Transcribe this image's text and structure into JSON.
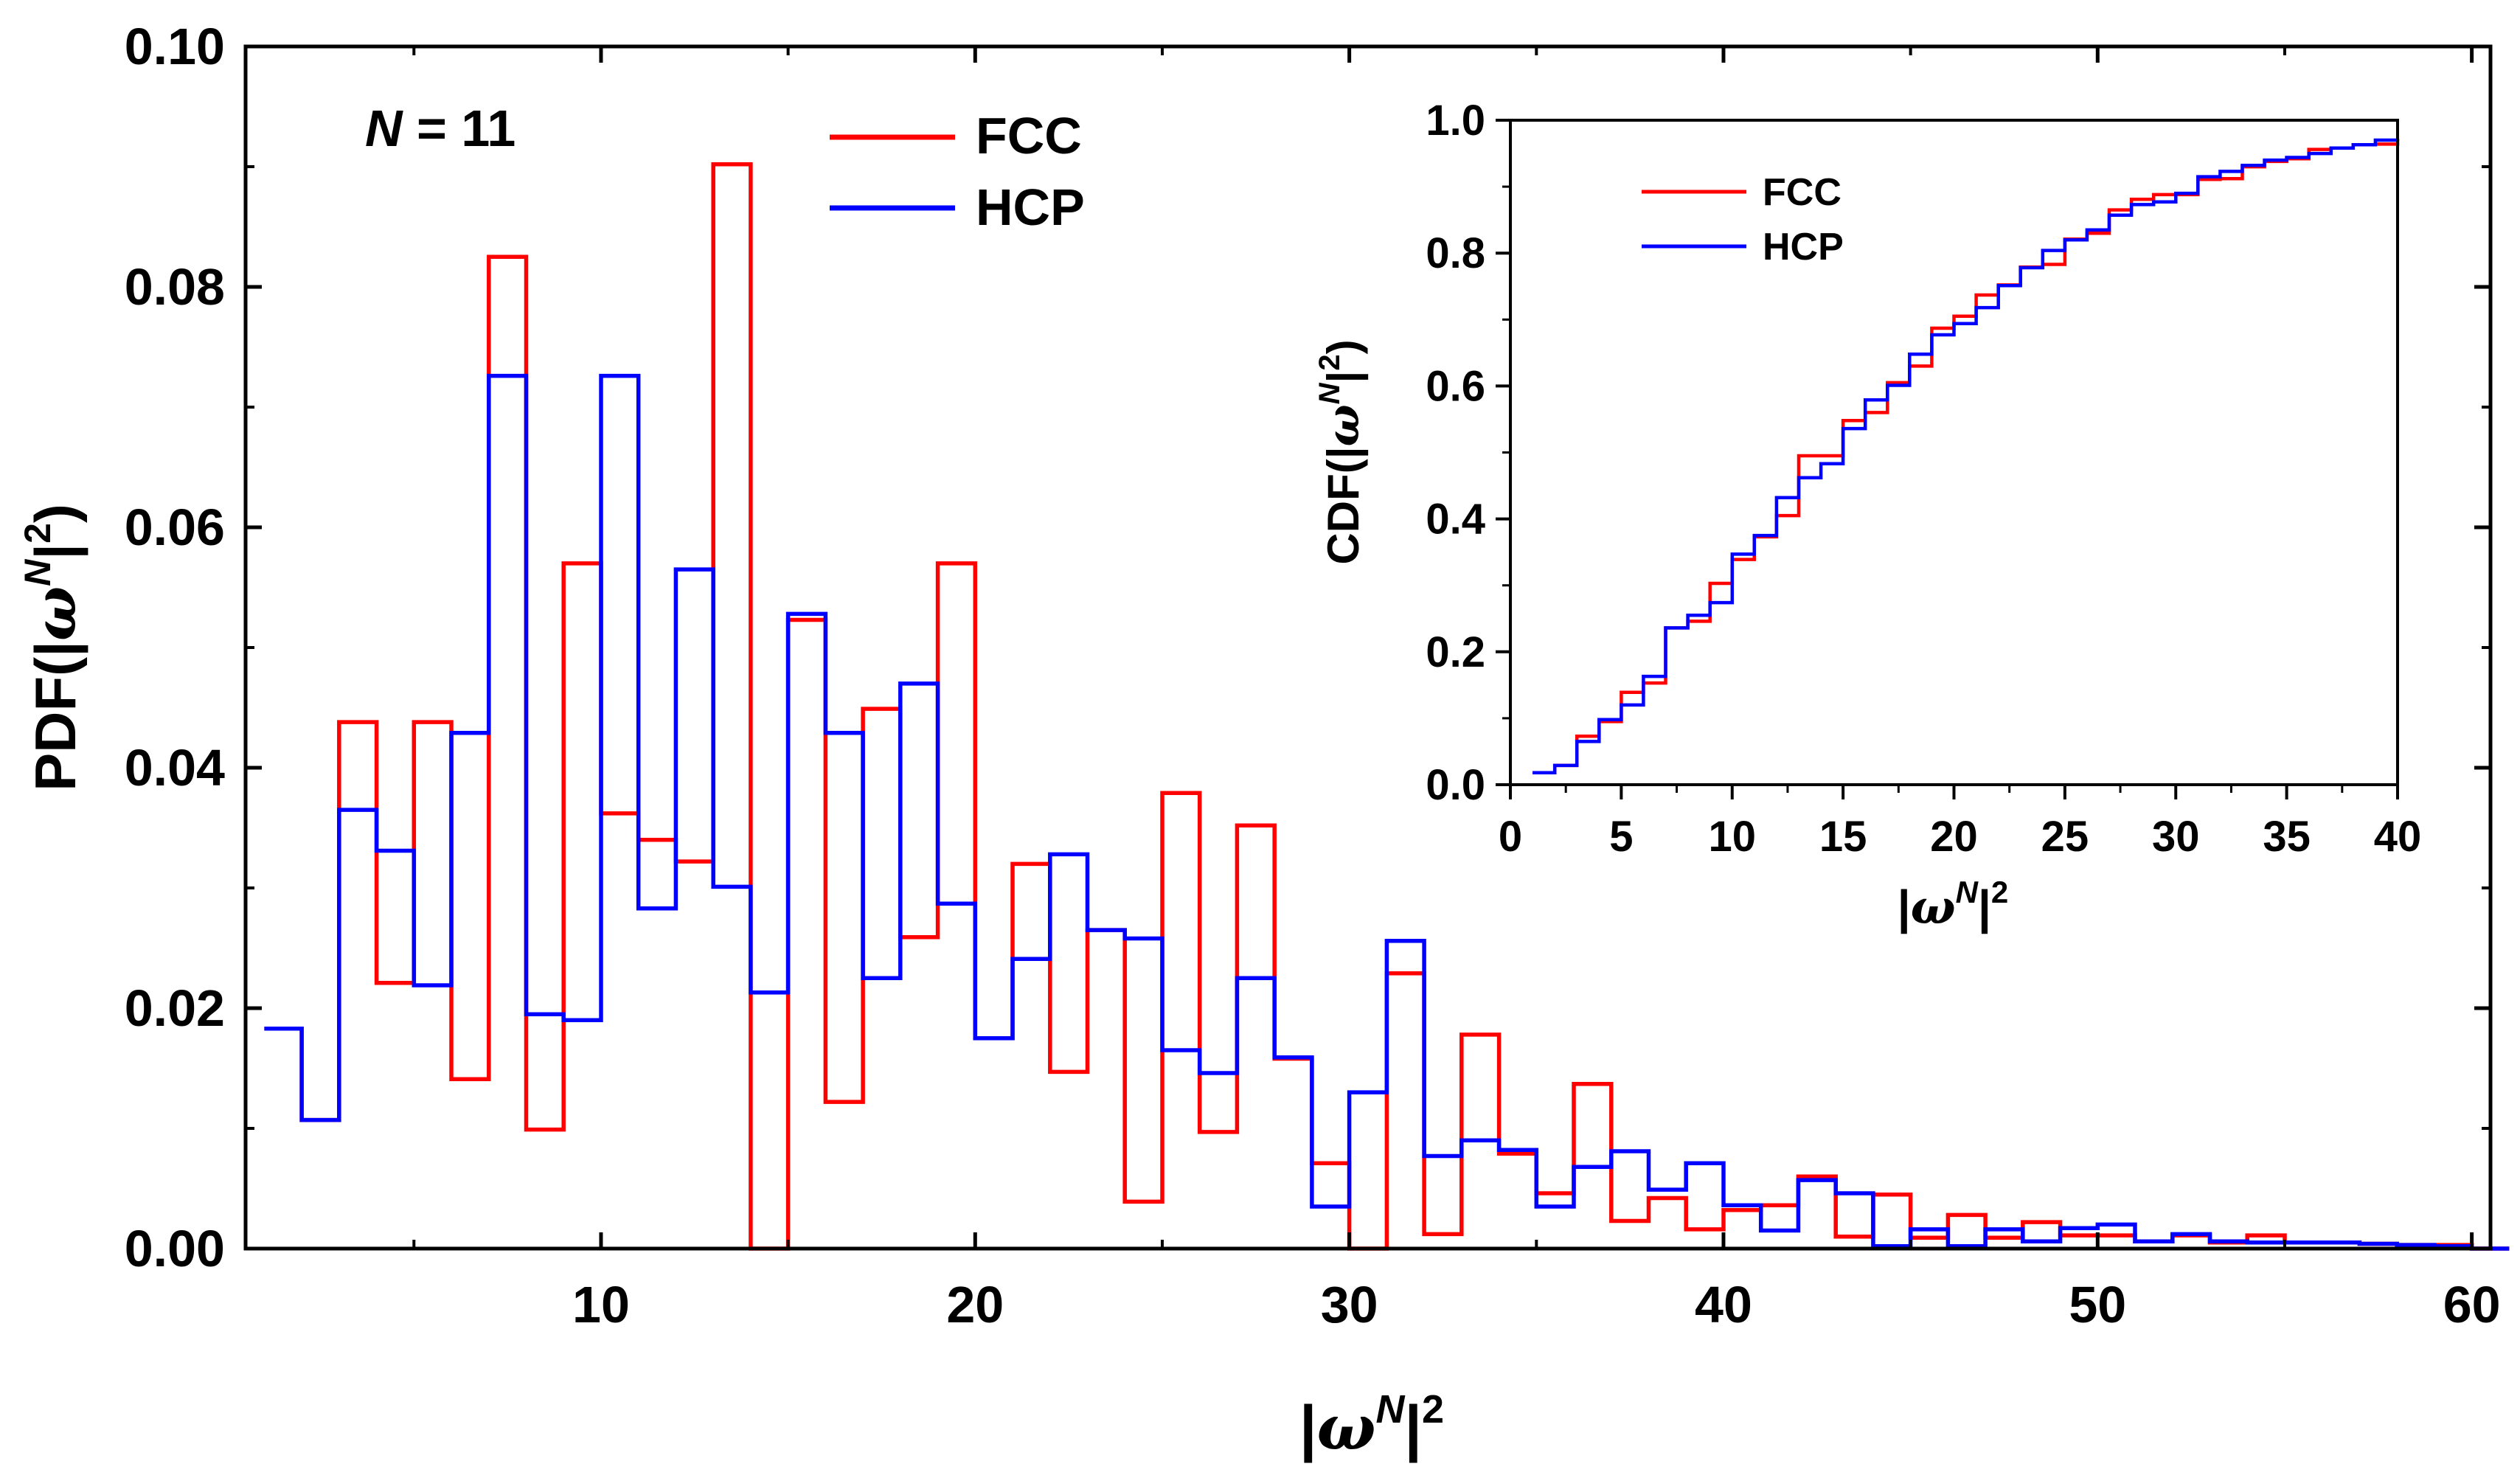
{
  "chart_data": [
    {
      "type": "histogram-step",
      "annotation": {
        "italic": "N",
        "rest": " = 11"
      },
      "xlabel": {
        "pre": "|",
        "sym": "ω",
        "sup": "N",
        "mid": "|",
        "sup2": "2"
      },
      "ylabel": {
        "pre": "PDF(|",
        "sym": "ω",
        "sup": "N",
        "mid": "|",
        "sup2": "2",
        "post": ")"
      },
      "xlim": [
        0.5,
        60.5
      ],
      "ylim": [
        0,
        0.1
      ],
      "xticks": [
        10,
        20,
        30,
        40,
        50,
        60
      ],
      "yticks": [
        0.0,
        0.02,
        0.04,
        0.06,
        0.08,
        0.1
      ],
      "ytick_labels": [
        "0.00",
        "0.02",
        "0.04",
        "0.06",
        "0.08",
        "0.10"
      ],
      "bin_edges_start": 1,
      "bin_width": 1,
      "series": [
        {
          "name": "FCC",
          "color": "#ff0000",
          "values": [
            0.0183,
            0.0107,
            0.0438,
            0.0221,
            0.0438,
            0.0141,
            0.0825,
            0.0099,
            0.057,
            0.0362,
            0.034,
            0.0322,
            0.0902,
            0.0,
            0.0523,
            0.0122,
            0.0449,
            0.0259,
            0.057,
            0.0175,
            0.032,
            0.0147,
            0.0265,
            0.0039,
            0.0379,
            0.0097,
            0.0352,
            0.0158,
            0.0071,
            0.0,
            0.0229,
            0.0012,
            0.0178,
            0.0079,
            0.0046,
            0.0137,
            0.0023,
            0.0042,
            0.0016,
            0.0032,
            0.0036,
            0.006,
            0.001,
            0.0045,
            0.0009,
            0.0028,
            0.0009,
            0.0022,
            0.0011,
            0.0011,
            0.0006,
            0.0011,
            0.0005,
            0.0011,
            0.0005,
            0.0005,
            0.0004,
            0.0003,
            0.0003,
            0.0
          ]
        },
        {
          "name": "HCP",
          "color": "#0000ff",
          "values": [
            0.0183,
            0.0107,
            0.0365,
            0.0331,
            0.0219,
            0.0429,
            0.0726,
            0.0195,
            0.019,
            0.0726,
            0.0283,
            0.0565,
            0.0301,
            0.0213,
            0.0528,
            0.0429,
            0.0225,
            0.047,
            0.0287,
            0.0175,
            0.0241,
            0.0328,
            0.0265,
            0.0258,
            0.0165,
            0.0146,
            0.0225,
            0.0159,
            0.0035,
            0.013,
            0.0256,
            0.0077,
            0.009,
            0.0082,
            0.0035,
            0.0068,
            0.0081,
            0.0049,
            0.0071,
            0.0036,
            0.0015,
            0.0057,
            0.0046,
            0.0002,
            0.0016,
            0.0002,
            0.0016,
            0.0006,
            0.0017,
            0.002,
            0.0006,
            0.0012,
            0.0006,
            0.0005,
            0.0005,
            0.0005,
            0.0004,
            0.0003,
            0.0002,
            0.0
          ]
        }
      ]
    },
    {
      "type": "cdf-step",
      "xlabel": {
        "pre": "|",
        "sym": "ω",
        "sup": "N",
        "mid": "|",
        "sup2": "2"
      },
      "ylabel": {
        "pre": "CDF(|",
        "sym": "ω",
        "sup": "N",
        "mid": "|",
        "sup2": "2",
        "post": ")"
      },
      "xlim": [
        0,
        40
      ],
      "ylim": [
        0,
        1.0
      ],
      "xticks": [
        0,
        5,
        10,
        15,
        20,
        25,
        30,
        35,
        40
      ],
      "yticks": [
        0.0,
        0.2,
        0.4,
        0.6,
        0.8,
        1.0
      ],
      "ytick_labels": [
        "0.0",
        "0.2",
        "0.4",
        "0.6",
        "0.8",
        "1.0"
      ],
      "series": [
        {
          "name": "FCC",
          "color": "#ff0000",
          "x": [
            1,
            2,
            3,
            4,
            5,
            6,
            7,
            8,
            9,
            10,
            11,
            12,
            13,
            14,
            15,
            16,
            17,
            18,
            19,
            20,
            21,
            22,
            23,
            24,
            25,
            26,
            27,
            28,
            29,
            30,
            31,
            32,
            33,
            34,
            35,
            36,
            37,
            38,
            39,
            40
          ],
          "values": [
            0.018,
            0.029,
            0.073,
            0.095,
            0.139,
            0.153,
            0.236,
            0.246,
            0.303,
            0.339,
            0.373,
            0.405,
            0.495,
            0.495,
            0.548,
            0.56,
            0.605,
            0.63,
            0.687,
            0.705,
            0.737,
            0.752,
            0.779,
            0.783,
            0.821,
            0.83,
            0.865,
            0.881,
            0.888,
            0.888,
            0.911,
            0.912,
            0.93,
            0.938,
            0.942,
            0.956,
            0.958,
            0.963,
            0.964,
            0.967
          ]
        },
        {
          "name": "HCP",
          "color": "#0000ff",
          "x": [
            1,
            2,
            3,
            4,
            5,
            6,
            7,
            8,
            9,
            10,
            11,
            12,
            13,
            14,
            15,
            16,
            17,
            18,
            19,
            20,
            21,
            22,
            23,
            24,
            25,
            26,
            27,
            28,
            29,
            30,
            31,
            32,
            33,
            34,
            35,
            36,
            37,
            38,
            39,
            40
          ],
          "values": [
            0.018,
            0.029,
            0.065,
            0.098,
            0.12,
            0.163,
            0.236,
            0.255,
            0.274,
            0.347,
            0.375,
            0.432,
            0.462,
            0.483,
            0.536,
            0.579,
            0.601,
            0.648,
            0.677,
            0.694,
            0.718,
            0.751,
            0.778,
            0.804,
            0.82,
            0.835,
            0.857,
            0.873,
            0.877,
            0.89,
            0.915,
            0.923,
            0.932,
            0.94,
            0.944,
            0.95,
            0.958,
            0.963,
            0.97,
            0.972
          ]
        }
      ]
    }
  ]
}
